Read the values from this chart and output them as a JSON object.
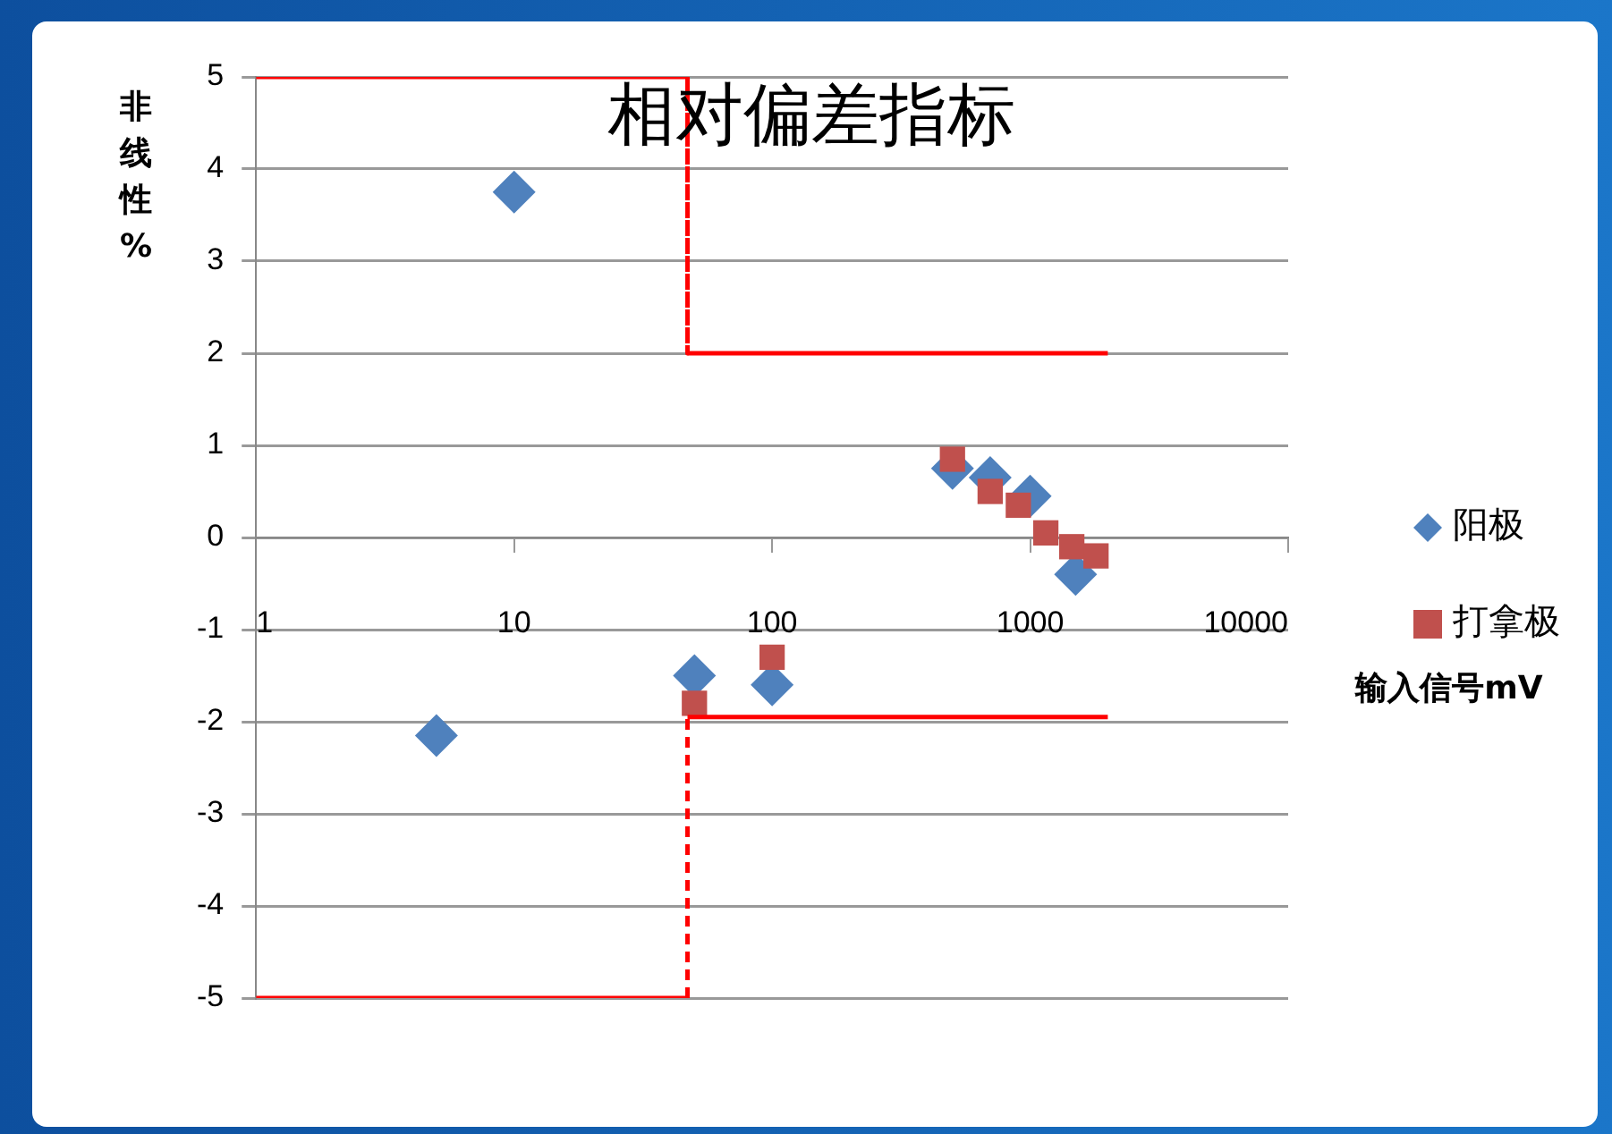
{
  "chart_data": {
    "type": "scatter",
    "title": "相对偏差指标",
    "xlabel": "输入信号mV",
    "ylabel": "非线性%",
    "log": "x",
    "xlim": [
      1,
      10000
    ],
    "xticks": [
      1,
      10,
      100,
      1000,
      10000
    ],
    "ylim": [
      -5,
      5
    ],
    "yticks": [
      -5,
      -4,
      -3,
      -2,
      -1,
      0,
      1,
      2,
      3,
      4,
      5
    ],
    "grid": "y",
    "legend": "right",
    "series": [
      {
        "name": "阳极",
        "marker": "diamond",
        "color": "#4f81bd",
        "x": [
          5,
          10,
          50,
          100,
          500,
          700,
          1000,
          1500
        ],
        "values": [
          -2.15,
          3.75,
          -1.5,
          -1.6,
          0.75,
          0.65,
          0.45,
          -0.4
        ]
      },
      {
        "name": "打拿极",
        "marker": "square",
        "color": "#c0504d",
        "x": [
          50,
          100,
          500,
          700,
          900,
          1150,
          1450,
          1800
        ],
        "values": [
          -1.8,
          -1.3,
          0.85,
          0.5,
          0.35,
          0.05,
          -0.1,
          -0.2
        ]
      },
      {
        "type": "line",
        "color": "#ff0000",
        "x": [
          1,
          47,
          47,
          2000
        ],
        "values": [
          5,
          5,
          2,
          2
        ]
      },
      {
        "type": "line",
        "color": "#ff0000",
        "x": [
          1,
          47,
          47,
          2000
        ],
        "values": [
          -5,
          -5,
          -1.95,
          -1.95
        ]
      }
    ]
  }
}
